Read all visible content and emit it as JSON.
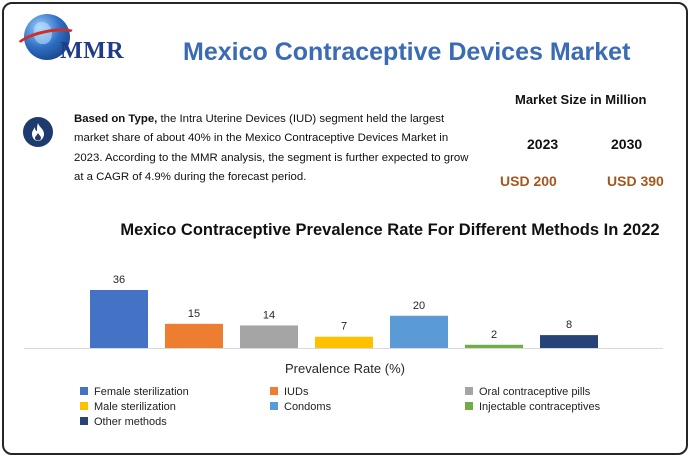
{
  "header": {
    "logo_text": "MMR",
    "title": "Mexico Contraceptive Devices Market"
  },
  "summary": {
    "lead": "Based on Type,",
    "body": " the Intra Uterine Devices (IUD) segment held the largest market share of about 40% in the Mexico Contraceptive Devices Market in 2023.  According to the MMR analysis, the segment is further expected to grow at a CAGR of 4.9% during the forecast period."
  },
  "market_size": {
    "label": "Market Size in Million",
    "years": [
      "2023",
      "2030"
    ],
    "values": [
      "USD 200",
      "USD 390"
    ]
  },
  "colors": {
    "title": "#3b6bb5",
    "value_text": "#a4561c",
    "badge": "#1e3a6e"
  },
  "icons": [
    "logo-globe-icon",
    "fire-icon"
  ],
  "chart_data": {
    "type": "bar",
    "title": "Mexico Contraceptive Prevalence Rate For Different Methods In 2022",
    "xlabel": "Prevalence Rate (%)",
    "ylabel": "",
    "ylim": [
      0,
      36
    ],
    "grid": false,
    "legend_position": "bottom",
    "categories": [
      "Female sterilization",
      "IUDs",
      "Oral contraceptive pills",
      "Male sterilization",
      "Condoms",
      "Injectable contraceptives",
      "Other methods"
    ],
    "values": [
      36,
      15,
      14,
      7,
      20,
      2,
      8
    ],
    "colors": [
      "#4472c4",
      "#ed7d31",
      "#a5a5a5",
      "#ffc000",
      "#5b9bd5",
      "#70ad47",
      "#264478"
    ]
  }
}
